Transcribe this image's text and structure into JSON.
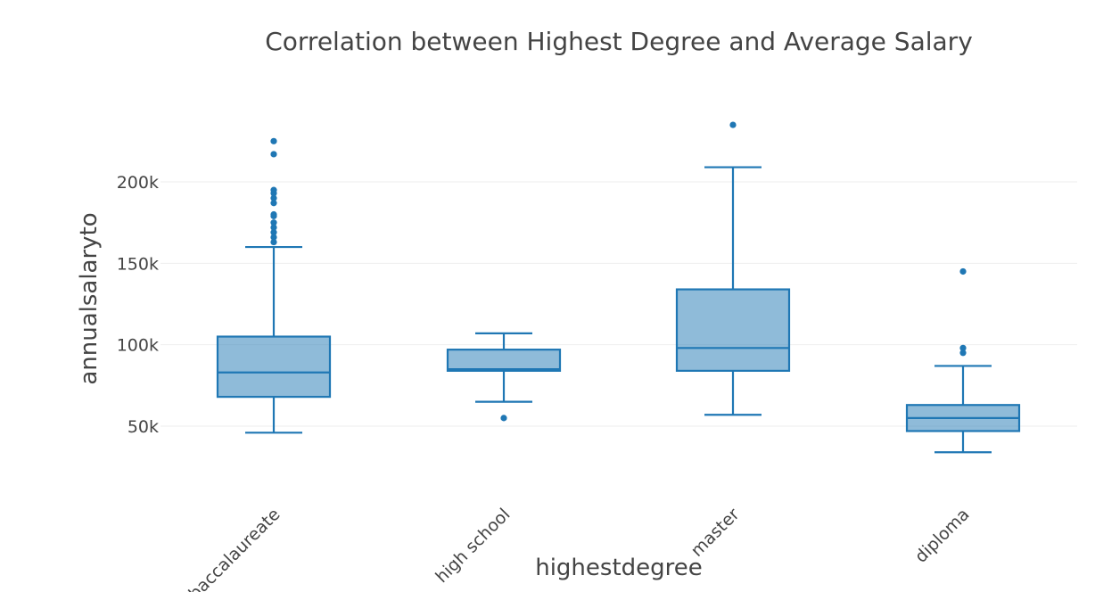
{
  "chart_data": {
    "type": "box",
    "title": "Correlation between Highest Degree and Average Salary",
    "xlabel": "highestdegree",
    "ylabel": "annualsalaryto",
    "ylim": [
      15000,
      245000
    ],
    "yticks": [
      50000,
      100000,
      150000,
      200000
    ],
    "ytick_labels": [
      "50k",
      "100k",
      "150k",
      "200k"
    ],
    "grid": true,
    "color": "#1f77b4",
    "categories": [
      "baccalaureate",
      "high school",
      "master",
      "diploma"
    ],
    "boxes": [
      {
        "category": "baccalaureate",
        "min": 46000,
        "q1": 68000,
        "median": 83000,
        "q3": 105000,
        "max": 160000,
        "outliers": [
          163000,
          166000,
          169000,
          172000,
          175000,
          179000,
          180000,
          187000,
          190000,
          193000,
          195000,
          217000,
          225000
        ]
      },
      {
        "category": "high school",
        "min": 65000,
        "q1": 84000,
        "median": 85000,
        "q3": 97000,
        "max": 107000,
        "outliers": [
          55000
        ]
      },
      {
        "category": "master",
        "min": 57000,
        "q1": 84000,
        "median": 98000,
        "q3": 134000,
        "max": 209000,
        "outliers": [
          235000
        ]
      },
      {
        "category": "diploma",
        "min": 34000,
        "q1": 47000,
        "median": 55000,
        "q3": 63000,
        "max": 87000,
        "outliers": [
          95000,
          98000,
          145000
        ]
      }
    ]
  }
}
